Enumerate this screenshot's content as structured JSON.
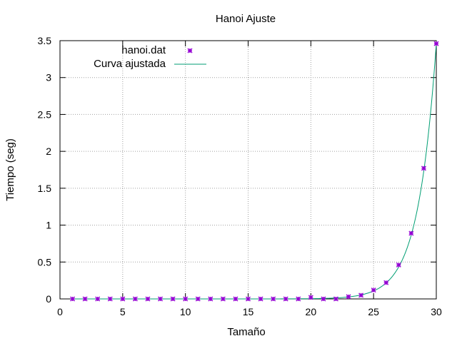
{
  "chart_data": {
    "type": "scatter",
    "title": "Hanoi Ajuste",
    "xlabel": "Tamaño",
    "ylabel": "Tiempo (seg)",
    "xlim": [
      0,
      30
    ],
    "ylim": [
      0,
      3.5
    ],
    "xticks": [
      0,
      5,
      10,
      15,
      20,
      25,
      30
    ],
    "yticks": [
      0,
      0.5,
      1,
      1.5,
      2,
      2.5,
      3,
      3.5
    ],
    "grid": true,
    "legend_position": "top-left",
    "series": [
      {
        "name": "hanoi.dat",
        "kind": "points",
        "color": "#9400d3",
        "x": [
          1,
          2,
          3,
          4,
          5,
          6,
          7,
          8,
          9,
          10,
          11,
          12,
          13,
          14,
          15,
          16,
          17,
          18,
          19,
          20,
          21,
          22,
          23,
          24,
          25,
          26,
          27,
          28,
          29,
          30
        ],
        "y": [
          0,
          0,
          0,
          0,
          0,
          0,
          0,
          0,
          0,
          0,
          0,
          0,
          0,
          0,
          0,
          0,
          0,
          0,
          0,
          0.02,
          0,
          0,
          0.03,
          0.05,
          0.12,
          0.22,
          0.46,
          0.89,
          1.77,
          3.46
        ]
      },
      {
        "name": "Curva ajustada",
        "kind": "line",
        "color": "#009e73",
        "function": "y = 3.46 * 2^(x-30)"
      }
    ]
  }
}
